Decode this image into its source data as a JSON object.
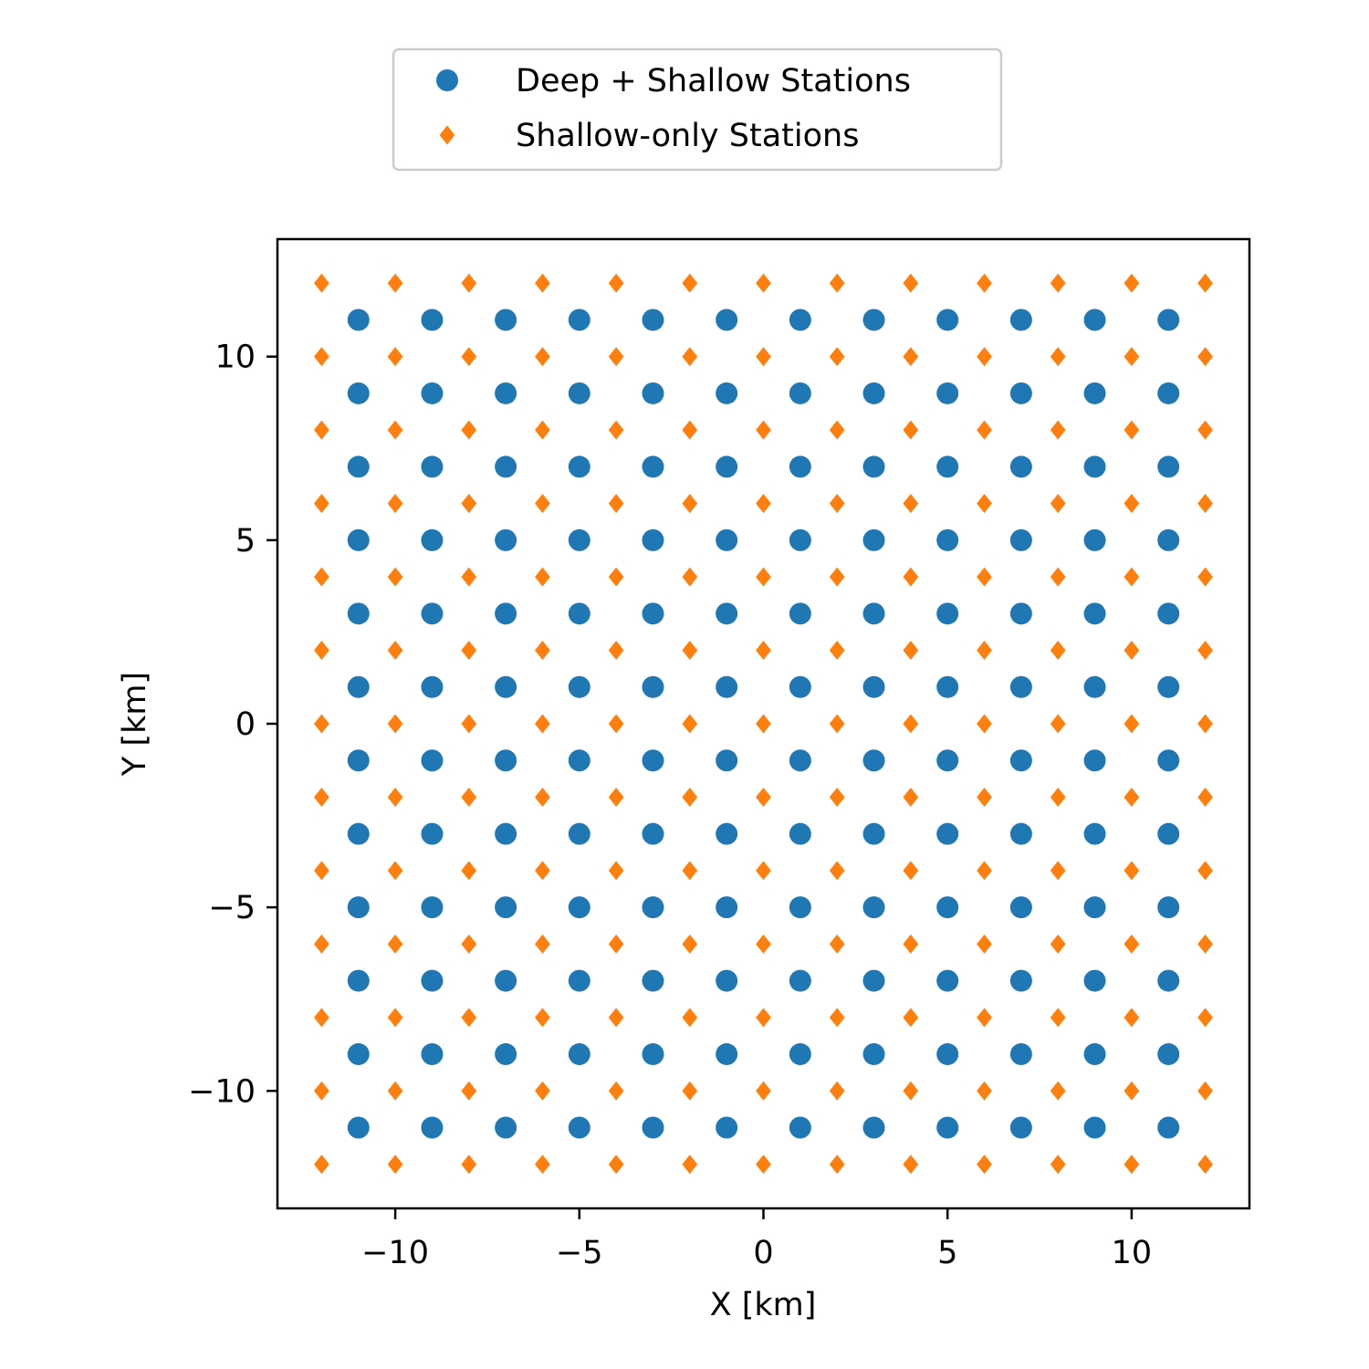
{
  "chart_data": {
    "type": "scatter",
    "title": "",
    "xlabel": "X [km]",
    "ylabel": "Y [km]",
    "xlim": [
      -13.2,
      13.2
    ],
    "ylim": [
      -13.2,
      13.2
    ],
    "x_ticks": [
      -10,
      -5,
      0,
      5,
      10
    ],
    "y_ticks": [
      -10,
      -5,
      0,
      5,
      10
    ],
    "x_tick_labels": [
      "−10",
      "−5",
      "0",
      "5",
      "10"
    ],
    "y_tick_labels": [
      "−10",
      "−5",
      "0",
      "5",
      "10"
    ],
    "grid": false,
    "legend_position": "top-center",
    "series": [
      {
        "name": "Deep + Shallow Stations",
        "marker": "circle",
        "color": "#1f77b4",
        "grid_x": [
          -11,
          -9,
          -7,
          -5,
          -3,
          -1,
          1,
          3,
          5,
          7,
          9,
          11
        ],
        "grid_y": [
          -11,
          -9,
          -7,
          -5,
          -3,
          -1,
          1,
          3,
          5,
          7,
          9,
          11
        ]
      },
      {
        "name": "Shallow-only Stations",
        "marker": "diamond",
        "color": "#ff7f0e",
        "grid_x": [
          -12,
          -10,
          -8,
          -6,
          -4,
          -2,
          0,
          2,
          4,
          6,
          8,
          10,
          12
        ],
        "grid_y": [
          -12,
          -10,
          -8,
          -6,
          -4,
          -2,
          0,
          2,
          4,
          6,
          8,
          10,
          12
        ]
      }
    ]
  }
}
